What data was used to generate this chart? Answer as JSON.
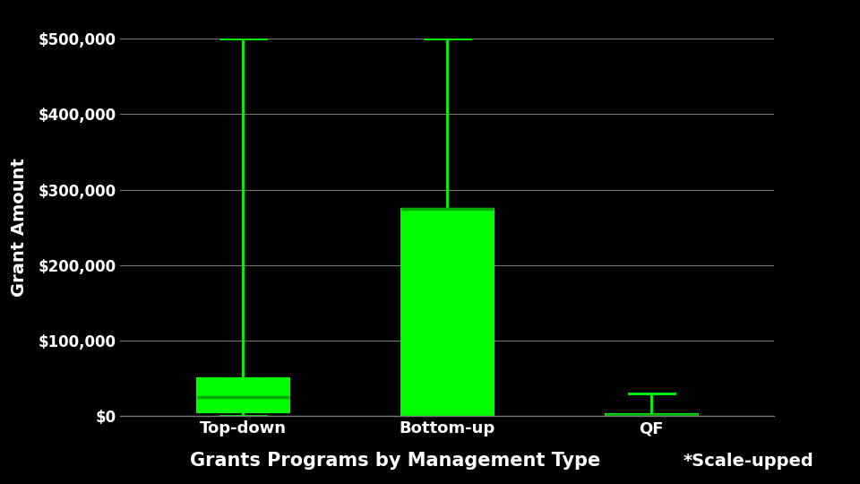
{
  "categories": [
    "Top-down",
    "Bottom-up",
    "QF"
  ],
  "box_stats": [
    {
      "med": 25000,
      "q1": 5000,
      "q3": 50000,
      "whislo": 0,
      "whishi": 500000,
      "fliers": []
    },
    {
      "med": 275000,
      "q1": 0,
      "q3": 275000,
      "whislo": 0,
      "whishi": 500000,
      "fliers": []
    },
    {
      "med": 2000,
      "q1": 1500,
      "q3": 3000,
      "whislo": 0,
      "whishi": 30000,
      "fliers": []
    }
  ],
  "box_color": "#00ff00",
  "median_color": "#00aa00",
  "whisker_color": "#00ff00",
  "cap_color": "#00ff00",
  "background_color": "#000000",
  "text_color": "#ffffff",
  "grid_color": "#777777",
  "title": "Grants Programs by Management Type",
  "title_note": "*Scale-upped",
  "ylabel": "Grant Amount",
  "ylim": [
    0,
    500000
  ],
  "yticks": [
    0,
    100000,
    200000,
    300000,
    400000,
    500000
  ],
  "ytick_labels": [
    "$0",
    "$100,000",
    "$200,000",
    "$300,000",
    "$400,000",
    "$500,000"
  ],
  "box_width": 0.45,
  "whisker_linewidth": 2.0,
  "cap_linewidth": 2.0,
  "median_linewidth": 2.5
}
